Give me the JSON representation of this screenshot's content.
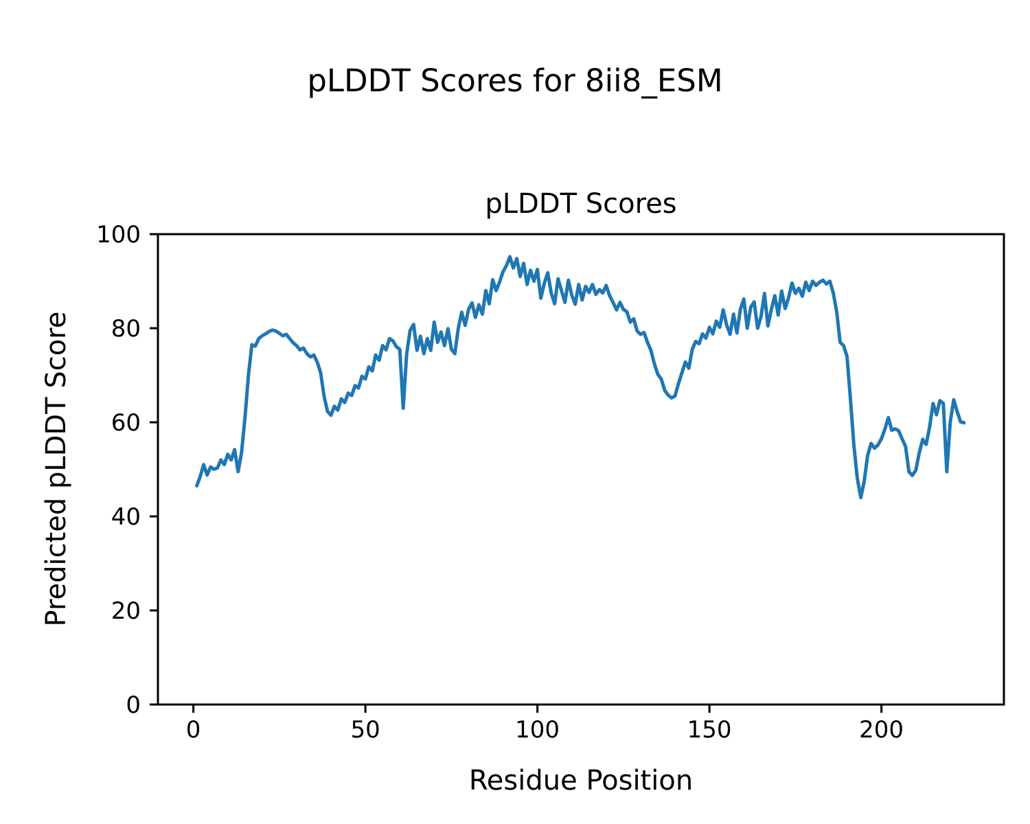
{
  "figure": {
    "suptitle": "pLDDT Scores for 8ii8_ESM",
    "background": "#ffffff"
  },
  "chart_data": {
    "type": "line",
    "title": "pLDDT Scores",
    "xlabel": "Residue Position",
    "ylabel": "Predicted pLDDT Score",
    "x_ticks": [
      0,
      50,
      100,
      150,
      200
    ],
    "y_ticks": [
      0,
      20,
      40,
      60,
      80,
      100
    ],
    "xlim": [
      -10.3,
      235.6
    ],
    "ylim": [
      0,
      100
    ],
    "grid": false,
    "legend": false,
    "line_color": "#1f77b4",
    "line_width": 5,
    "axis_color": "#000000",
    "series": [
      {
        "name": "pLDDT",
        "x_start": 1,
        "x_step": 1,
        "values": [
          46.5,
          48.5,
          51,
          48.8,
          50.5,
          50,
          50.3,
          52,
          51,
          53.2,
          52,
          54.2,
          49.5,
          53.5,
          61,
          70,
          76.5,
          76.2,
          77.8,
          78.4,
          78.8,
          79.3,
          79.6,
          79.4,
          78.9,
          78.4,
          78.7,
          77.8,
          76.9,
          76.3,
          75.4,
          75.8,
          74.6,
          73.9,
          74.3,
          72.8,
          70.5,
          65.5,
          62.3,
          61.5,
          63.4,
          62.6,
          65,
          64.2,
          66.2,
          65.7,
          67.8,
          67.3,
          69.8,
          69.2,
          71.8,
          70.9,
          74.3,
          73.2,
          76.3,
          75.4,
          77.8,
          77.3,
          76.1,
          75.5,
          63,
          74.5,
          79.5,
          80.8,
          75.3,
          78.3,
          74.6,
          77.8,
          75.3,
          81.3,
          77,
          79.2,
          76.3,
          79.9,
          75.5,
          74.6,
          80,
          83.4,
          80.6,
          84,
          85.4,
          82.3,
          85,
          83,
          88,
          85.2,
          90.3,
          88,
          89.8,
          92,
          93.3,
          95.2,
          92.8,
          94.8,
          91,
          93.8,
          89.3,
          92.3,
          90,
          92.5,
          86.4,
          89.5,
          91.8,
          87.5,
          85.2,
          90.5,
          88,
          85.5,
          90.2,
          87,
          85.1,
          89.3,
          86,
          88.9,
          87.6,
          89.3,
          87.2,
          88.2,
          87.5,
          89.1,
          86.9,
          85.5,
          83.9,
          85.5,
          84,
          83.5,
          81.3,
          82,
          79.4,
          78.7,
          79.1,
          77,
          75.3,
          72.4,
          70.2,
          69.2,
          66.8,
          65.8,
          65.2,
          65.6,
          68.2,
          70.5,
          72.8,
          71.5,
          75.5,
          77.2,
          76.7,
          78.8,
          77.9,
          80.2,
          78.8,
          81.5,
          80.2,
          83.9,
          80.7,
          78.7,
          83,
          79,
          84,
          86.2,
          80,
          84.5,
          85.6,
          80,
          82.5,
          87.4,
          80.5,
          84,
          86.9,
          82.8,
          87.9,
          84.2,
          86.5,
          89.6,
          87.4,
          88.5,
          86.8,
          89.8,
          88,
          90,
          89.1,
          89.8,
          90.2,
          89.4,
          90,
          87.5,
          83.5,
          77,
          76.3,
          74,
          65,
          55,
          48,
          44,
          47.5,
          53,
          55.5,
          54.5,
          55.2,
          56.5,
          58.5,
          61,
          58.3,
          58.6,
          58.2,
          56.5,
          54.9,
          49.5,
          48.7,
          49.8,
          53.5,
          56.4,
          55.3,
          59,
          64,
          61.6,
          64.6,
          64,
          49.5,
          60,
          64.8,
          62.3,
          60.1,
          59.9
        ]
      }
    ]
  }
}
